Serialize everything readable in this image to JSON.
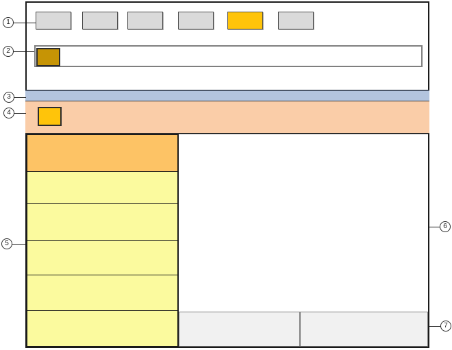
{
  "figure": {
    "kind": "ui-layout-schematic",
    "background": "#ffffff"
  },
  "callouts": [
    {
      "number": "1",
      "points_to": "toolbar-button-row"
    },
    {
      "number": "2",
      "points_to": "bar-with-icon"
    },
    {
      "number": "3",
      "points_to": "thin-blue-band"
    },
    {
      "number": "4",
      "points_to": "highlight-band-with-icon"
    },
    {
      "number": "5",
      "points_to": "left-column-cells"
    },
    {
      "number": "6",
      "points_to": "main-content-panel"
    },
    {
      "number": "7",
      "points_to": "footer-cells"
    }
  ],
  "toolbar": {
    "button_count": 6,
    "highlighted_button_index": 5,
    "button_color": "#dadada",
    "highlight_color": "#ffc40a"
  },
  "bar_with_icon": {
    "fill": "#ffffff",
    "icon_color": "#c69405"
  },
  "bands": {
    "blue_band_color": "#b3c4de",
    "peach_band_color": "#facda8",
    "peach_band_icon_color": "#ffc40a"
  },
  "left_column": {
    "cell_count": 6,
    "first_cell_color": "#fdc365",
    "other_cell_color": "#fbfa9e"
  },
  "main_panel": {
    "fill": "#ffffff"
  },
  "footer": {
    "cell_count": 2,
    "cell_color": "#f1f1f1"
  },
  "frame": {
    "border_color": "#1a1a1a"
  }
}
